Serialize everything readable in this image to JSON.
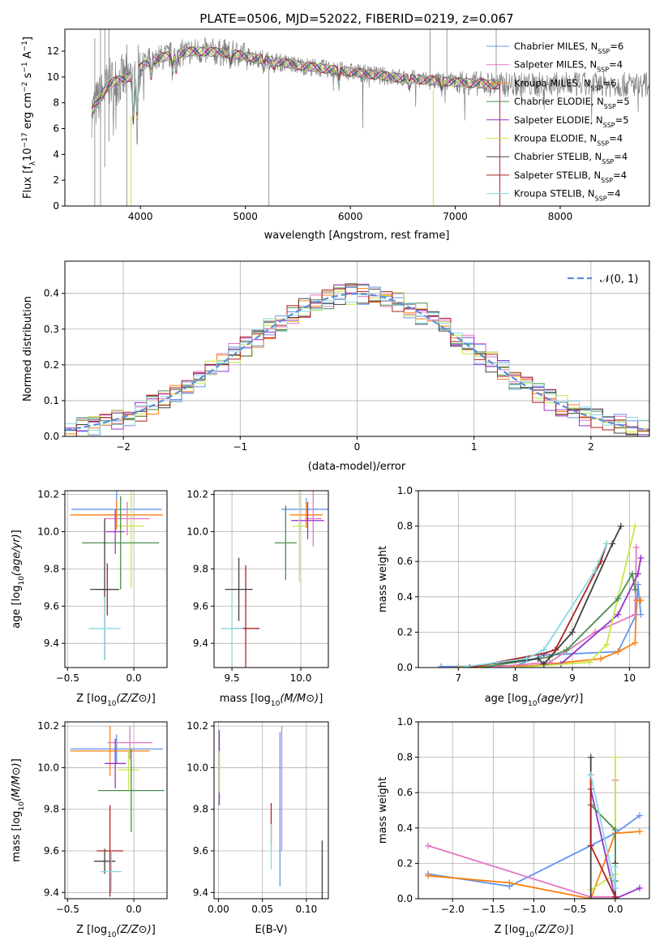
{
  "chart_data": [
    {
      "type": "line",
      "title": "PLATE=0506, MJD=52022, FIBERID=0219, z=0.067",
      "xlabel": "wavelength [Angstrom, rest frame]",
      "ylabel": "Flux [fλ10⁻¹⁷ erg cm⁻² s⁻¹ A⁻¹]",
      "xlim": [
        3280,
        8850
      ],
      "ylim": [
        0,
        13.7
      ],
      "xticks": [
        4000,
        5000,
        6000,
        7000,
        8000
      ],
      "yticks": [
        0,
        2,
        4,
        6,
        8,
        10,
        12
      ],
      "legend_position": "top-right",
      "data_color": "#808080",
      "series": [
        {
          "name": "Chabrier MILES, N",
          "sub": "SSP",
          "tail": "=6",
          "color": "#6495ed"
        },
        {
          "name": "Salpeter MILES, N",
          "sub": "SSP",
          "tail": "=4",
          "color": "#e377c2"
        },
        {
          "name": "Kroupa MILES, N",
          "sub": "SSP",
          "tail": "=6",
          "color": "#ff7f0e"
        },
        {
          "name": "Chabrier ELODIE, N",
          "sub": "SSP",
          "tail": "=5",
          "color": "#4c8c4c"
        },
        {
          "name": "Salpeter ELODIE, N",
          "sub": "SSP",
          "tail": "=5",
          "color": "#9932cc"
        },
        {
          "name": "Kroupa ELODIE, N",
          "sub": "SSP",
          "tail": "=4",
          "color": "#c8e645"
        },
        {
          "name": "Chabrier STELIB, N",
          "sub": "SSP",
          "tail": "=4",
          "color": "#404040"
        },
        {
          "name": "Salpeter STELIB, N",
          "sub": "SSP",
          "tail": "=4",
          "color": "#b22222"
        },
        {
          "name": "Kroupa STELIB, N",
          "sub": "SSP",
          "tail": "=4",
          "color": "#88d8e0"
        }
      ],
      "continuum_points": [
        [
          3530,
          7.2
        ],
        [
          3700,
          9.5
        ],
        [
          3900,
          10.0
        ],
        [
          4000,
          10.7
        ],
        [
          4100,
          11.3
        ],
        [
          4300,
          11.7
        ],
        [
          4500,
          12.0
        ],
        [
          4800,
          11.9
        ],
        [
          5000,
          11.6
        ],
        [
          5500,
          10.9
        ],
        [
          6000,
          10.4
        ],
        [
          6500,
          9.9
        ],
        [
          7000,
          9.6
        ],
        [
          7430,
          9.4
        ]
      ]
    },
    {
      "type": "histogram",
      "xlabel": "(data-model)/error",
      "ylabel": "Normed distribution",
      "xlim": [
        -2.5,
        2.5
      ],
      "ylim": [
        0,
        0.49
      ],
      "xticks": [
        -2,
        -1,
        0,
        1,
        2
      ],
      "yticks": [
        0.0,
        0.1,
        0.2,
        0.3,
        0.4
      ],
      "legend": {
        "label": "𝒩(0, 1)",
        "position": "top-right",
        "color": "#5b8fd6"
      },
      "bin_width": 0.1,
      "grid": true
    },
    {
      "type": "scatter",
      "xlabel": "Z [log₁₀(Z/Z⊙)]",
      "ylabel": "age  [log₁₀(age/yr)]",
      "xlim": [
        -0.52,
        0.25
      ],
      "ylim": [
        9.27,
        10.22
      ],
      "xticks": [
        -0.5,
        0.0
      ],
      "yticks": [
        9.4,
        9.6,
        9.8,
        10.0,
        10.2
      ],
      "points": [
        {
          "x": -0.13,
          "y": 10.12,
          "ex": 0.34,
          "ey": 0.1,
          "color": "#6495ed"
        },
        {
          "x": -0.13,
          "y": 10.09,
          "ex": 0.35,
          "ey": 0.08,
          "color": "#ff7f0e"
        },
        {
          "x": -0.05,
          "y": 10.07,
          "ex": 0.17,
          "ey": 0.09,
          "color": "#e377c2"
        },
        {
          "x": -0.14,
          "y": 10.0,
          "ex": 0.07,
          "ey": 0.12,
          "color": "#9932cc"
        },
        {
          "x": -0.02,
          "y": 10.03,
          "ex": 0.1,
          "ey": 0.33,
          "color": "#c8e645"
        },
        {
          "x": -0.1,
          "y": 9.94,
          "ex": 0.29,
          "ey": 0.25,
          "color": "#4c8c4c"
        },
        {
          "x": -0.2,
          "y": 9.69,
          "ex": 0.08,
          "ey": 0.14,
          "color": "#b22222"
        },
        {
          "x": -0.22,
          "y": 9.69,
          "ex": 0.11,
          "ey": 0.38,
          "color": "#404040"
        },
        {
          "x": -0.22,
          "y": 9.48,
          "ex": 0.12,
          "ey": 0.17,
          "color": "#88d8e0"
        }
      ]
    },
    {
      "type": "scatter",
      "xlabel": "mass [log₁₀(M/M⊙)]",
      "ylabel": "",
      "xlim": [
        9.37,
        10.2
      ],
      "ylim": [
        9.27,
        10.22
      ],
      "xticks": [
        9.5,
        10.0
      ],
      "yticks": [
        9.4,
        9.6,
        9.8,
        10.0,
        10.2
      ],
      "points": [
        {
          "x": 10.04,
          "y": 10.12,
          "ex": 0.18,
          "ey": 0.06,
          "color": "#6495ed"
        },
        {
          "x": 10.04,
          "y": 10.09,
          "ex": 0.12,
          "ey": 0.07,
          "color": "#ff7f0e"
        },
        {
          "x": 10.09,
          "y": 10.07,
          "ex": 0.06,
          "ey": 0.15,
          "color": "#e377c2"
        },
        {
          "x": 10.05,
          "y": 10.06,
          "ex": 0.12,
          "ey": 0.1,
          "color": "#9932cc"
        },
        {
          "x": 9.99,
          "y": 10.03,
          "ex": 0.05,
          "ey": 0.3,
          "color": "#c8e645"
        },
        {
          "x": 9.89,
          "y": 9.94,
          "ex": 0.08,
          "ey": 0.2,
          "color": "#4c8c4c"
        },
        {
          "x": 9.6,
          "y": 9.48,
          "ex": 0.1,
          "ey": 0.34,
          "color": "#b22222"
        },
        {
          "x": 9.55,
          "y": 9.69,
          "ex": 0.1,
          "ey": 0.17,
          "color": "#404040"
        },
        {
          "x": 9.5,
          "y": 9.48,
          "ex": 0.08,
          "ey": 0.2,
          "color": "#88d8e0"
        }
      ]
    },
    {
      "type": "line",
      "xlabel": "age  [log₁₀(age/yr)]",
      "ylabel": "mass weight",
      "xlim": [
        6.3,
        10.35
      ],
      "ylim": [
        0,
        1.0
      ],
      "xticks": [
        7,
        8,
        9,
        10
      ],
      "yticks": [
        0.0,
        0.2,
        0.4,
        0.6,
        0.8,
        1.0
      ],
      "grid": true,
      "series": [
        {
          "color": "#6495ed",
          "x": [
            6.7,
            8.0,
            8.5,
            9.8,
            10.12,
            10.15,
            10.2
          ],
          "y": [
            0.005,
            0.01,
            0.07,
            0.09,
            0.3,
            0.47,
            0.3
          ]
        },
        {
          "color": "#ff7f0e",
          "x": [
            7.0,
            8.3,
            9.5,
            9.8,
            10.1,
            10.12,
            10.2
          ],
          "y": [
            0.005,
            0.01,
            0.05,
            0.09,
            0.14,
            0.38,
            0.38
          ]
        },
        {
          "color": "#e377c2",
          "x": [
            7.5,
            8.6,
            9.4,
            10.1,
            10.12
          ],
          "y": [
            0.0,
            0.03,
            0.2,
            0.3,
            0.68
          ]
        },
        {
          "color": "#9932cc",
          "x": [
            8.0,
            8.8,
            9.8,
            10.15,
            10.2
          ],
          "y": [
            0.0,
            0.02,
            0.3,
            0.53,
            0.62
          ]
        },
        {
          "color": "#c8e645",
          "x": [
            8.0,
            9.3,
            9.6,
            10.1
          ],
          "y": [
            0.0,
            0.03,
            0.13,
            0.8
          ]
        },
        {
          "color": "#4c8c4c",
          "x": [
            7.4,
            8.6,
            8.9,
            9.8,
            10.05,
            10.1
          ],
          "y": [
            0.0,
            0.06,
            0.1,
            0.39,
            0.53,
            0.44
          ]
        },
        {
          "color": "#404040",
          "x": [
            7.0,
            8.4,
            8.5,
            9.0,
            9.7,
            9.85
          ],
          "y": [
            0.0,
            0.05,
            0.02,
            0.2,
            0.7,
            0.8
          ]
        },
        {
          "color": "#b22222",
          "x": [
            7.2,
            8.5,
            8.7,
            9.5,
            9.6
          ],
          "y": [
            0.0,
            0.08,
            0.1,
            0.6,
            0.7
          ]
        },
        {
          "color": "#88d8e0",
          "x": [
            7.0,
            8.2,
            8.5,
            9.4,
            9.6
          ],
          "y": [
            0.0,
            0.05,
            0.1,
            0.55,
            0.7
          ]
        }
      ]
    },
    {
      "type": "scatter",
      "xlabel": "Z [log₁₀(Z/Z⊙)]",
      "ylabel": "mass [log₁₀(M/M⊙)]",
      "xlim": [
        -0.52,
        0.25
      ],
      "ylim": [
        9.37,
        10.22
      ],
      "xticks": [
        -0.5,
        0.0
      ],
      "yticks": [
        9.4,
        9.6,
        9.8,
        10.0,
        10.2
      ],
      "points": [
        {
          "x": -0.13,
          "y": 10.09,
          "ex": 0.35,
          "ey": 0.07,
          "color": "#6495ed"
        },
        {
          "x": -0.18,
          "y": 10.08,
          "ex": 0.3,
          "ey": 0.12,
          "color": "#ff7f0e"
        },
        {
          "x": -0.03,
          "y": 10.12,
          "ex": 0.17,
          "ey": 0.08,
          "color": "#e377c2"
        },
        {
          "x": -0.14,
          "y": 10.02,
          "ex": 0.08,
          "ey": 0.12,
          "color": "#9932cc"
        },
        {
          "x": -0.04,
          "y": 9.99,
          "ex": 0.08,
          "ey": 0.1,
          "color": "#c8e645"
        },
        {
          "x": -0.02,
          "y": 9.89,
          "ex": 0.25,
          "ey": 0.2,
          "color": "#4c8c4c"
        },
        {
          "x": -0.18,
          "y": 9.6,
          "ex": 0.1,
          "ey": 0.22,
          "color": "#b22222"
        },
        {
          "x": -0.22,
          "y": 9.55,
          "ex": 0.08,
          "ey": 0.06,
          "color": "#404040"
        },
        {
          "x": -0.17,
          "y": 9.5,
          "ex": 0.08,
          "ey": 0.1,
          "color": "#88d8e0"
        }
      ]
    },
    {
      "type": "scatter",
      "xlabel": "E(B-V)",
      "ylabel": "",
      "xlim": [
        -0.005,
        0.125
      ],
      "ylim": [
        9.37,
        10.22
      ],
      "xticks": [
        0.0,
        0.05,
        0.1
      ],
      "yticks": [
        9.4,
        9.6,
        9.8,
        10.0,
        10.2
      ],
      "points": [
        {
          "x": 0.001,
          "y": 10.0,
          "ey": 0.18,
          "color": "#9932cc"
        },
        {
          "x": 0.001,
          "y": 9.98,
          "ey": 0.1,
          "color": "#c8e645"
        },
        {
          "x": 0.06,
          "y": 9.73,
          "ey": 0.1,
          "color": "#b22222"
        },
        {
          "x": 0.06,
          "y": 9.62,
          "ey": 0.11,
          "color": "#88d8e0"
        },
        {
          "x": 0.07,
          "y": 9.8,
          "ey": 0.37,
          "color": "#6495ed"
        },
        {
          "x": 0.072,
          "y": 9.9,
          "ey": 0.3,
          "color": "#e377c2"
        },
        {
          "x": 0.118,
          "y": 9.46,
          "ey": 0.19,
          "color": "#404040"
        }
      ]
    },
    {
      "type": "line",
      "xlabel": "Z [log₁₀(Z/Z⊙)]",
      "ylabel": "mass weight",
      "xlim": [
        -2.42,
        0.42
      ],
      "ylim": [
        0,
        1.0
      ],
      "xticks": [
        -2.0,
        -1.5,
        -1.0,
        -0.5,
        0.0
      ],
      "yticks": [
        0.0,
        0.2,
        0.4,
        0.6,
        0.8,
        1.0
      ],
      "grid": true,
      "series": [
        {
          "color": "#6495ed",
          "x": [
            -2.3,
            -1.3,
            0.0,
            0.3
          ],
          "y": [
            0.14,
            0.07,
            0.37,
            0.47
          ]
        },
        {
          "color": "#ff7f0e",
          "x": [
            -2.3,
            -1.3,
            -0.3,
            0.0,
            0.3
          ],
          "y": [
            0.13,
            0.09,
            0.0,
            0.37,
            0.38
          ]
        },
        {
          "color": "#e377c2",
          "x": [
            -2.3,
            -0.3,
            0.0,
            0.0
          ],
          "y": [
            0.3,
            0.01,
            0.01,
            0.67
          ]
        },
        {
          "color": "#9932cc",
          "x": [
            -0.3,
            -0.3,
            0.0,
            0.3
          ],
          "y": [
            0.3,
            0.62,
            0.0,
            0.06
          ]
        },
        {
          "color": "#c8e645",
          "x": [
            -0.3,
            0.0,
            0.0
          ],
          "y": [
            0.05,
            0.14,
            0.8
          ]
        },
        {
          "color": "#4c8c4c",
          "x": [
            -0.3,
            0.0,
            0.0
          ],
          "y": [
            0.53,
            0.39,
            0.1
          ]
        },
        {
          "color": "#404040",
          "x": [
            -0.3,
            -0.3,
            0.0,
            0.0
          ],
          "y": [
            0.8,
            0.0,
            0.0,
            0.2
          ]
        },
        {
          "color": "#b22222",
          "x": [
            -0.3,
            -0.3,
            0.0
          ],
          "y": [
            0.7,
            0.3,
            0.01
          ]
        },
        {
          "color": "#88d8e0",
          "x": [
            -0.3,
            0.0,
            0.0
          ],
          "y": [
            0.7,
            0.06,
            0.18
          ]
        }
      ]
    }
  ]
}
